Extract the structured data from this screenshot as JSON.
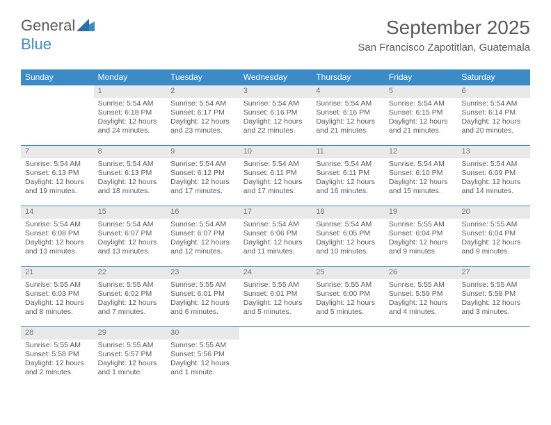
{
  "logo": {
    "general": "General",
    "blue": "Blue"
  },
  "header": {
    "monthYear": "September 2025",
    "location": "San Francisco Zapotitlan, Guatemala"
  },
  "colors": {
    "accent": "#3b8bc9",
    "dayHeaderBg": "#e9e9e9",
    "text": "#595959"
  },
  "daysOfWeek": [
    "Sunday",
    "Monday",
    "Tuesday",
    "Wednesday",
    "Thursday",
    "Friday",
    "Saturday"
  ],
  "weeks": [
    [
      {
        "empty": true
      },
      {
        "n": "1",
        "sr": "5:54 AM",
        "ss": "6:18 PM",
        "dl": "12 hours and 24 minutes."
      },
      {
        "n": "2",
        "sr": "5:54 AM",
        "ss": "6:17 PM",
        "dl": "12 hours and 23 minutes."
      },
      {
        "n": "3",
        "sr": "5:54 AM",
        "ss": "6:16 PM",
        "dl": "12 hours and 22 minutes."
      },
      {
        "n": "4",
        "sr": "5:54 AM",
        "ss": "6:16 PM",
        "dl": "12 hours and 21 minutes."
      },
      {
        "n": "5",
        "sr": "5:54 AM",
        "ss": "6:15 PM",
        "dl": "12 hours and 21 minutes."
      },
      {
        "n": "6",
        "sr": "5:54 AM",
        "ss": "6:14 PM",
        "dl": "12 hours and 20 minutes."
      }
    ],
    [
      {
        "n": "7",
        "sr": "5:54 AM",
        "ss": "6:13 PM",
        "dl": "12 hours and 19 minutes."
      },
      {
        "n": "8",
        "sr": "5:54 AM",
        "ss": "6:13 PM",
        "dl": "12 hours and 18 minutes."
      },
      {
        "n": "9",
        "sr": "5:54 AM",
        "ss": "6:12 PM",
        "dl": "12 hours and 17 minutes."
      },
      {
        "n": "10",
        "sr": "5:54 AM",
        "ss": "6:11 PM",
        "dl": "12 hours and 17 minutes."
      },
      {
        "n": "11",
        "sr": "5:54 AM",
        "ss": "6:11 PM",
        "dl": "12 hours and 16 minutes."
      },
      {
        "n": "12",
        "sr": "5:54 AM",
        "ss": "6:10 PM",
        "dl": "12 hours and 15 minutes."
      },
      {
        "n": "13",
        "sr": "5:54 AM",
        "ss": "6:09 PM",
        "dl": "12 hours and 14 minutes."
      }
    ],
    [
      {
        "n": "14",
        "sr": "5:54 AM",
        "ss": "6:08 PM",
        "dl": "12 hours and 13 minutes."
      },
      {
        "n": "15",
        "sr": "5:54 AM",
        "ss": "6:07 PM",
        "dl": "12 hours and 13 minutes."
      },
      {
        "n": "16",
        "sr": "5:54 AM",
        "ss": "6:07 PM",
        "dl": "12 hours and 12 minutes."
      },
      {
        "n": "17",
        "sr": "5:54 AM",
        "ss": "6:06 PM",
        "dl": "12 hours and 11 minutes."
      },
      {
        "n": "18",
        "sr": "5:54 AM",
        "ss": "6:05 PM",
        "dl": "12 hours and 10 minutes."
      },
      {
        "n": "19",
        "sr": "5:55 AM",
        "ss": "6:04 PM",
        "dl": "12 hours and 9 minutes."
      },
      {
        "n": "20",
        "sr": "5:55 AM",
        "ss": "6:04 PM",
        "dl": "12 hours and 9 minutes."
      }
    ],
    [
      {
        "n": "21",
        "sr": "5:55 AM",
        "ss": "6:03 PM",
        "dl": "12 hours and 8 minutes."
      },
      {
        "n": "22",
        "sr": "5:55 AM",
        "ss": "6:02 PM",
        "dl": "12 hours and 7 minutes."
      },
      {
        "n": "23",
        "sr": "5:55 AM",
        "ss": "6:01 PM",
        "dl": "12 hours and 6 minutes."
      },
      {
        "n": "24",
        "sr": "5:55 AM",
        "ss": "6:01 PM",
        "dl": "12 hours and 5 minutes."
      },
      {
        "n": "25",
        "sr": "5:55 AM",
        "ss": "6:00 PM",
        "dl": "12 hours and 5 minutes."
      },
      {
        "n": "26",
        "sr": "5:55 AM",
        "ss": "5:59 PM",
        "dl": "12 hours and 4 minutes."
      },
      {
        "n": "27",
        "sr": "5:55 AM",
        "ss": "5:58 PM",
        "dl": "12 hours and 3 minutes."
      }
    ],
    [
      {
        "n": "28",
        "sr": "5:55 AM",
        "ss": "5:58 PM",
        "dl": "12 hours and 2 minutes."
      },
      {
        "n": "29",
        "sr": "5:55 AM",
        "ss": "5:57 PM",
        "dl": "12 hours and 1 minute."
      },
      {
        "n": "30",
        "sr": "5:55 AM",
        "ss": "5:56 PM",
        "dl": "12 hours and 1 minute."
      },
      {
        "empty": true
      },
      {
        "empty": true
      },
      {
        "empty": true
      },
      {
        "empty": true
      }
    ]
  ],
  "labels": {
    "sunrise": "Sunrise: ",
    "sunset": "Sunset: ",
    "daylight": "Daylight: "
  }
}
